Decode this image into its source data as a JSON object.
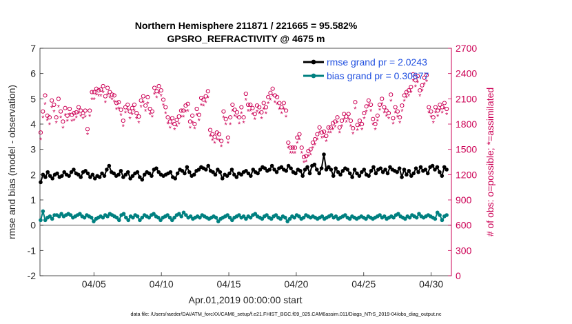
{
  "chart_data": {
    "type": "line",
    "title": "Northern Hemisphere 211871 / 221665 = 95.582%",
    "subtitle": "GPSRO_REFRACTIVITY @ 4675 m",
    "xlabel": "Apr.01,2019 00:00:00 start",
    "ylabel_left": "rmse and bias (model - observation)",
    "ylabel_right": "# of obs: o=possible; *=assimilated",
    "footer": "data file: /Users/raeder/DAI/ATM_forcXX/CAM6_setup/f.e21.FHIST_BGC.f09_025.CAM6assim.011/Diags_NTrS_2019-04/obs_diag_output.nc",
    "x_range": [
      1,
      31.5
    ],
    "x_ticks": [
      {
        "pos": 5,
        "label": "04/05"
      },
      {
        "pos": 10,
        "label": "04/10"
      },
      {
        "pos": 15,
        "label": "04/15"
      },
      {
        "pos": 20,
        "label": "04/20"
      },
      {
        "pos": 25,
        "label": "04/25"
      },
      {
        "pos": 30,
        "label": "04/30"
      }
    ],
    "y_left_range": [
      -2,
      7
    ],
    "y_left_ticks": [
      "-2",
      "-1",
      "0",
      "1",
      "2",
      "3",
      "4",
      "5",
      "6",
      "7"
    ],
    "y_right_range": [
      0,
      2700
    ],
    "y_right_ticks": [
      "0",
      "300",
      "600",
      "900",
      "1200",
      "1500",
      "1800",
      "2100",
      "2400",
      "2700"
    ],
    "legend": [
      {
        "label": "rmse grand pr = 2.0243",
        "color": "#000000"
      },
      {
        "label": "bias grand pr = 0.30677",
        "color": "#008080"
      }
    ],
    "colors": {
      "rmse": "#000000",
      "bias": "#008080",
      "obs": "#cc0055",
      "legend_text": "#1f4fe0",
      "zero_line": "#999999"
    },
    "series": [
      {
        "name": "rmse",
        "values": [
          1.7,
          2.0,
          1.9,
          2.1,
          1.95,
          1.85,
          2.0,
          2.05,
          1.9,
          1.95,
          2.1,
          2.0,
          1.95,
          2.1,
          2.2,
          2.05,
          2.0,
          1.9,
          2.1,
          2.15,
          2.05,
          1.9,
          2.0,
          1.85,
          1.95,
          1.9,
          2.05,
          1.95,
          2.2,
          2.35,
          2.1,
          2.05,
          1.95,
          2.0,
          2.15,
          1.9,
          2.0,
          2.1,
          1.85,
          1.95,
          2.05,
          2.1,
          1.9,
          1.8,
          2.0,
          2.1,
          2.05,
          1.95,
          2.2,
          2.25,
          2.1,
          2.0,
          1.95,
          2.0,
          2.05,
          2.1,
          1.9,
          1.85,
          2.05,
          2.2,
          2.15,
          2.05,
          2.3,
          2.1,
          1.95,
          2.0,
          2.15,
          2.2,
          2.3,
          2.25,
          2.2,
          2.35,
          2.15,
          2.1,
          2.0,
          2.2,
          2.1,
          1.85,
          2.0,
          1.95,
          2.05,
          2.2,
          2.0,
          1.9,
          2.05,
          2.0,
          2.1,
          2.15,
          2.05,
          1.95,
          2.2,
          2.1,
          2.05,
          2.2,
          2.3,
          2.25,
          2.15,
          2.2,
          2.35,
          2.2,
          2.1,
          2.25,
          2.3,
          2.2,
          2.15,
          2.35,
          2.25,
          2.1,
          2.05,
          2.2,
          2.15,
          1.95,
          2.2,
          2.3,
          2.05,
          2.35,
          2.4,
          2.2,
          2.05,
          2.25,
          2.8,
          2.2,
          2.3,
          2.2,
          1.95,
          2.25,
          2.1,
          2.0,
          2.15,
          2.25,
          2.2,
          2.05,
          1.9,
          2.2,
          2.05,
          1.95,
          2.1,
          2.2,
          2.0,
          1.95,
          2.15,
          2.3,
          2.05,
          2.2,
          2.25,
          2.1,
          2.2,
          2.05,
          2.3,
          2.2,
          2.15,
          2.1,
          2.25,
          1.9,
          2.2,
          2.0,
          2.15,
          1.95,
          2.05,
          2.25,
          2.1,
          2.3,
          2.15,
          2.2,
          2.05,
          2.3,
          2.35,
          2.2,
          2.3,
          2.1,
          1.95,
          2.3,
          2.2
        ]
      },
      {
        "name": "bias",
        "values": [
          0.2,
          0.55,
          0.2,
          0.3,
          0.35,
          0.25,
          0.4,
          0.4,
          0.35,
          0.45,
          0.35,
          0.4,
          0.45,
          0.4,
          0.3,
          0.35,
          0.4,
          0.45,
          0.35,
          0.3,
          0.4,
          0.35,
          0.3,
          0.15,
          0.25,
          0.3,
          0.35,
          0.3,
          0.4,
          0.35,
          0.45,
          0.4,
          0.35,
          0.3,
          0.2,
          0.4,
          0.45,
          0.3,
          0.2,
          0.35,
          0.3,
          0.4,
          0.35,
          0.2,
          0.3,
          0.4,
          0.35,
          0.3,
          0.4,
          0.45,
          0.35,
          0.3,
          0.2,
          0.3,
          0.35,
          0.4,
          0.3,
          0.2,
          0.3,
          0.4,
          0.45,
          0.35,
          0.5,
          0.4,
          0.3,
          0.35,
          0.25,
          0.3,
          0.35,
          0.3,
          0.4,
          0.35,
          0.3,
          0.25,
          0.3,
          0.35,
          0.3,
          0.15,
          0.25,
          0.3,
          0.35,
          0.4,
          0.3,
          0.2,
          0.3,
          0.35,
          0.4,
          0.3,
          0.35,
          0.25,
          0.35,
          0.3,
          0.4,
          0.45,
          0.35,
          0.3,
          0.25,
          0.35,
          0.4,
          0.3,
          0.25,
          0.35,
          0.4,
          0.3,
          0.25,
          0.35,
          0.3,
          0.15,
          0.25,
          0.35,
          0.3,
          0.4,
          0.35,
          0.25,
          0.3,
          0.4,
          0.35,
          0.3,
          0.35,
          0.3,
          0.25,
          0.3,
          0.35,
          0.25,
          0.3,
          0.35,
          0.4,
          0.3,
          0.35,
          0.25,
          0.3,
          0.35,
          0.4,
          0.3,
          0.25,
          0.35,
          0.3,
          0.25,
          0.3,
          0.35,
          0.3,
          0.25,
          0.35,
          0.3,
          0.25,
          0.3,
          0.35,
          0.4,
          0.3,
          0.35,
          0.25,
          0.3,
          0.35,
          0.3,
          0.4,
          0.45,
          0.35,
          0.3,
          0.25,
          0.35,
          0.3,
          0.4,
          0.35,
          0.3,
          0.45,
          0.35,
          0.3,
          0.35,
          0.4,
          0.35,
          0.3,
          0.25,
          0.5,
          0.4,
          0.2,
          0.35,
          0.4
        ]
      },
      {
        "name": "obs_possible",
        "values": [
          1700,
          1950,
          2140,
          1900,
          1880,
          2080,
          2030,
          1880,
          2100,
          1950,
          1830,
          1990,
          1900,
          1980,
          1910,
          1930,
          1940,
          2000,
          1960,
          1930,
          1960,
          1740,
          1960,
          2180,
          2180,
          2220,
          2200,
          2210,
          2250,
          2130,
          2230,
          2180,
          2150,
          2140,
          2050,
          2060,
          1970,
          1840,
          2000,
          2030,
          1950,
          1990,
          2030,
          1930,
          1890,
          2080,
          2130,
          2020,
          2120,
          1980,
          1950,
          2230,
          2190,
          2250,
          2200,
          2090,
          2000,
          1880,
          1830,
          1870,
          1800,
          1850,
          1890,
          1960,
          1960,
          2020,
          2040,
          1830,
          1900,
          1800,
          1980,
          1910,
          2110,
          2090,
          2130,
          2190,
          1730,
          1680,
          1650,
          1700,
          1680,
          1600,
          1950,
          1860,
          1640,
          1880,
          2030,
          1970,
          1940,
          1880,
          2000,
          1880,
          2160,
          2030,
          2030,
          1990,
          1920,
          2020,
          2000,
          1940,
          2050,
          2000,
          2120,
          2170,
          2220,
          2140,
          2120,
          2050,
          2000,
          2050,
          1960,
          1580,
          1520,
          1520,
          1520,
          1640,
          1680,
          1520,
          1410,
          1420,
          1480,
          1500,
          1580,
          1620,
          1680,
          1760,
          1700,
          1710,
          1660,
          1760,
          1760,
          1810,
          1830,
          1880,
          1760,
          1840,
          1920,
          1890,
          1920,
          1840,
          1750,
          2060,
          1790,
          1840,
          1800,
          1930,
          2010,
          2080,
          2030,
          1860,
          1800,
          1900,
          2030,
          2100,
          2000,
          1960,
          1930,
          2150,
          1870,
          2000,
          1950,
          1880,
          2020,
          2140,
          2180,
          2200,
          2240,
          2390,
          2320,
          2370,
          2200,
          2260,
          2350,
          2380,
          2000,
          1950,
          1880,
          2000,
          1960,
          2030,
          2000,
          2050,
          1980
        ]
      },
      {
        "name": "obs_assimilated",
        "values": [
          1620,
          1880,
          2040,
          1850,
          1800,
          2000,
          1950,
          1820,
          2010,
          1880,
          1760,
          1910,
          1840,
          1920,
          1840,
          1850,
          1880,
          1930,
          1900,
          1870,
          1890,
          1680,
          1900,
          2100,
          2100,
          2150,
          2140,
          2140,
          2180,
          2060,
          2150,
          2120,
          2100,
          2070,
          1980,
          1990,
          1910,
          1780,
          1940,
          1970,
          1870,
          1920,
          1960,
          1870,
          1820,
          2010,
          2060,
          1960,
          2050,
          1920,
          1890,
          2160,
          2120,
          2170,
          2140,
          2030,
          1930,
          1810,
          1760,
          1800,
          1740,
          1780,
          1810,
          1890,
          1890,
          1950,
          1960,
          1760,
          1820,
          1750,
          1910,
          1850,
          2030,
          2020,
          2060,
          2120,
          1660,
          1610,
          1580,
          1620,
          1610,
          1540,
          1880,
          1800,
          1580,
          1800,
          1960,
          1900,
          1880,
          1810,
          1930,
          1820,
          2090,
          1960,
          1960,
          1920,
          1860,
          1950,
          1930,
          1870,
          1980,
          1930,
          2050,
          2090,
          2140,
          2060,
          2040,
          1980,
          1930,
          1980,
          1890,
          1520,
          1460,
          1460,
          1460,
          1580,
          1620,
          1460,
          1350,
          1360,
          1420,
          1440,
          1520,
          1560,
          1620,
          1700,
          1640,
          1650,
          1600,
          1700,
          1700,
          1740,
          1770,
          1820,
          1700,
          1780,
          1860,
          1830,
          1860,
          1780,
          1690,
          1990,
          1730,
          1780,
          1740,
          1870,
          1950,
          2020,
          1960,
          1800,
          1740,
          1840,
          1970,
          2040,
          1940,
          1900,
          1870,
          2080,
          1810,
          1940,
          1890,
          1820,
          1960,
          2080,
          2120,
          2140,
          2180,
          2320,
          2250,
          2300,
          2140,
          2200,
          2280,
          2310,
          1940,
          1890,
          1820,
          1940,
          1900,
          1970,
          1940,
          1990,
          1920
        ]
      }
    ]
  }
}
